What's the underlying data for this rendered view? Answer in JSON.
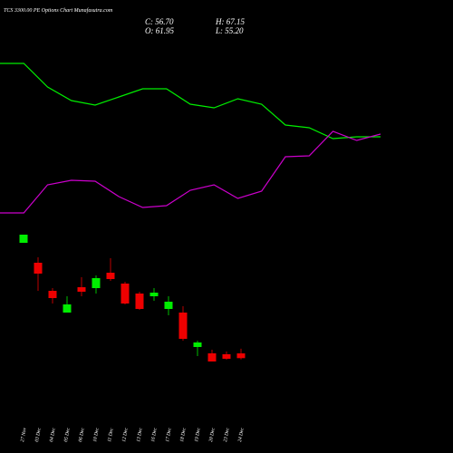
{
  "title": "TCS 3300.00 PE Options Chart Munafasutra.com",
  "header": {
    "close": "C: 56.70",
    "high": "H: 67.15",
    "open": "O: 61.95",
    "low": "L: 55.20"
  },
  "chart_data": [
    {
      "type": "line",
      "ylim": [
        0,
        100
      ],
      "series": [
        {
          "color": "#00ee00",
          "values": [
            90,
            90,
            77,
            69.5,
            67,
            71.5,
            76,
            76,
            67.5,
            65.5,
            70.5,
            67.5,
            56,
            54.5,
            48.5,
            49.5,
            49.5
          ]
        },
        {
          "color": "#cc00cc",
          "values": [
            7.5,
            7.5,
            23,
            25.5,
            25,
            16.5,
            10.5,
            11.5,
            20,
            23,
            15.5,
            19.5,
            38.5,
            39,
            52.5,
            47.5,
            51
          ]
        }
      ]
    },
    {
      "type": "candlestick",
      "ylim": [
        50,
        200
      ],
      "up_color": "#00ee00",
      "down_color": "#ee0000",
      "categories": [
        "27 Nov",
        "03 Dec",
        "04 Dec",
        "05 Dec",
        "06 Dec",
        "10 Dec",
        "11 Dec",
        "12 Dec",
        "13 Dec",
        "16 Dec",
        "17 Dec",
        "18 Dec",
        "19 Dec",
        "20 Dec",
        "23 Dec",
        "24 Dec"
      ],
      "open": [
        184,
        162,
        131,
        107,
        135,
        134,
        151,
        139,
        128,
        125,
        111,
        107,
        69,
        62,
        61,
        61.95
      ],
      "high": [
        193,
        168,
        134,
        125,
        146,
        148,
        167,
        141,
        130,
        134,
        125,
        114,
        76,
        66,
        64,
        67.15
      ],
      "low": [
        184,
        131,
        117,
        107,
        125,
        128,
        142,
        116,
        110,
        120,
        104,
        76,
        59,
        53,
        55,
        55.2
      ],
      "close": [
        193,
        150,
        123,
        116,
        130,
        145,
        144,
        117,
        111,
        129,
        119,
        78,
        74,
        53,
        56,
        56.7
      ]
    }
  ]
}
